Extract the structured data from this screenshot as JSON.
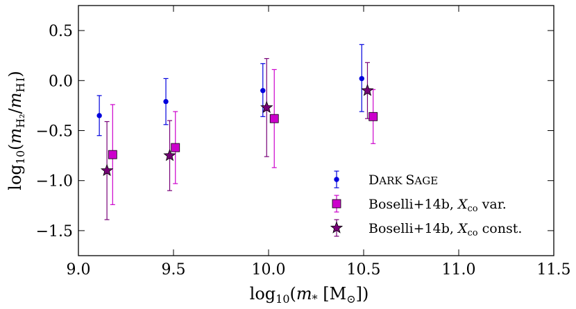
{
  "chart_data": {
    "type": "scatter",
    "xlabel": "log10(m* [M⊙])",
    "ylabel": "log10(mH2/mHI)",
    "xlim": [
      9.0,
      11.5
    ],
    "ylim": [
      -1.75,
      0.75
    ],
    "x_ticks": [
      9.0,
      9.5,
      10.0,
      10.5,
      11.0,
      11.5
    ],
    "x_tick_labels": [
      "9.0",
      "9.5",
      "10.0",
      "10.5",
      "11.0",
      "11.5"
    ],
    "y_ticks": [
      0.5,
      0.0,
      -0.5,
      -1.0,
      -1.5
    ],
    "y_tick_labels": [
      "0.5",
      "0.0",
      "−0.5",
      "−1.0",
      "−1.5"
    ],
    "grid": false,
    "legend_position": "lower-right",
    "series": [
      {
        "name": "Dark Sage",
        "marker": "circle",
        "color": "#0000dd",
        "points": [
          {
            "x": 9.11,
            "y": -0.35,
            "low": -0.55,
            "high": -0.15
          },
          {
            "x": 9.46,
            "y": -0.21,
            "low": -0.44,
            "high": 0.02
          },
          {
            "x": 9.97,
            "y": -0.1,
            "low": -0.36,
            "high": 0.17
          },
          {
            "x": 10.49,
            "y": 0.02,
            "low": -0.31,
            "high": 0.36
          }
        ]
      },
      {
        "name": "Boselli+14b, Xco var.",
        "marker": "square",
        "color": "#cc00cc",
        "points": [
          {
            "x": 9.18,
            "y": -0.74,
            "low": -1.24,
            "high": -0.24
          },
          {
            "x": 9.51,
            "y": -0.67,
            "low": -1.03,
            "high": -0.31
          },
          {
            "x": 10.03,
            "y": -0.38,
            "low": -0.87,
            "high": 0.11
          },
          {
            "x": 10.55,
            "y": -0.36,
            "low": -0.63,
            "high": -0.09
          }
        ]
      },
      {
        "name": "Boselli+14b, Xco const.",
        "marker": "star",
        "color": "#770077",
        "points": [
          {
            "x": 9.15,
            "y": -0.9,
            "low": -1.39,
            "high": -0.41
          },
          {
            "x": 9.48,
            "y": -0.75,
            "low": -1.1,
            "high": -0.4
          },
          {
            "x": 9.99,
            "y": -0.27,
            "low": -0.76,
            "high": 0.22
          },
          {
            "x": 10.52,
            "y": -0.1,
            "low": -0.38,
            "high": 0.18
          }
        ]
      }
    ]
  },
  "legend": {
    "items": [
      {
        "label_main": "Dark Sage",
        "label_sub": ""
      },
      {
        "label_main": "Boselli+14b, ",
        "label_sub": " var."
      },
      {
        "label_main": "Boselli+14b, ",
        "label_sub": " const."
      }
    ]
  }
}
